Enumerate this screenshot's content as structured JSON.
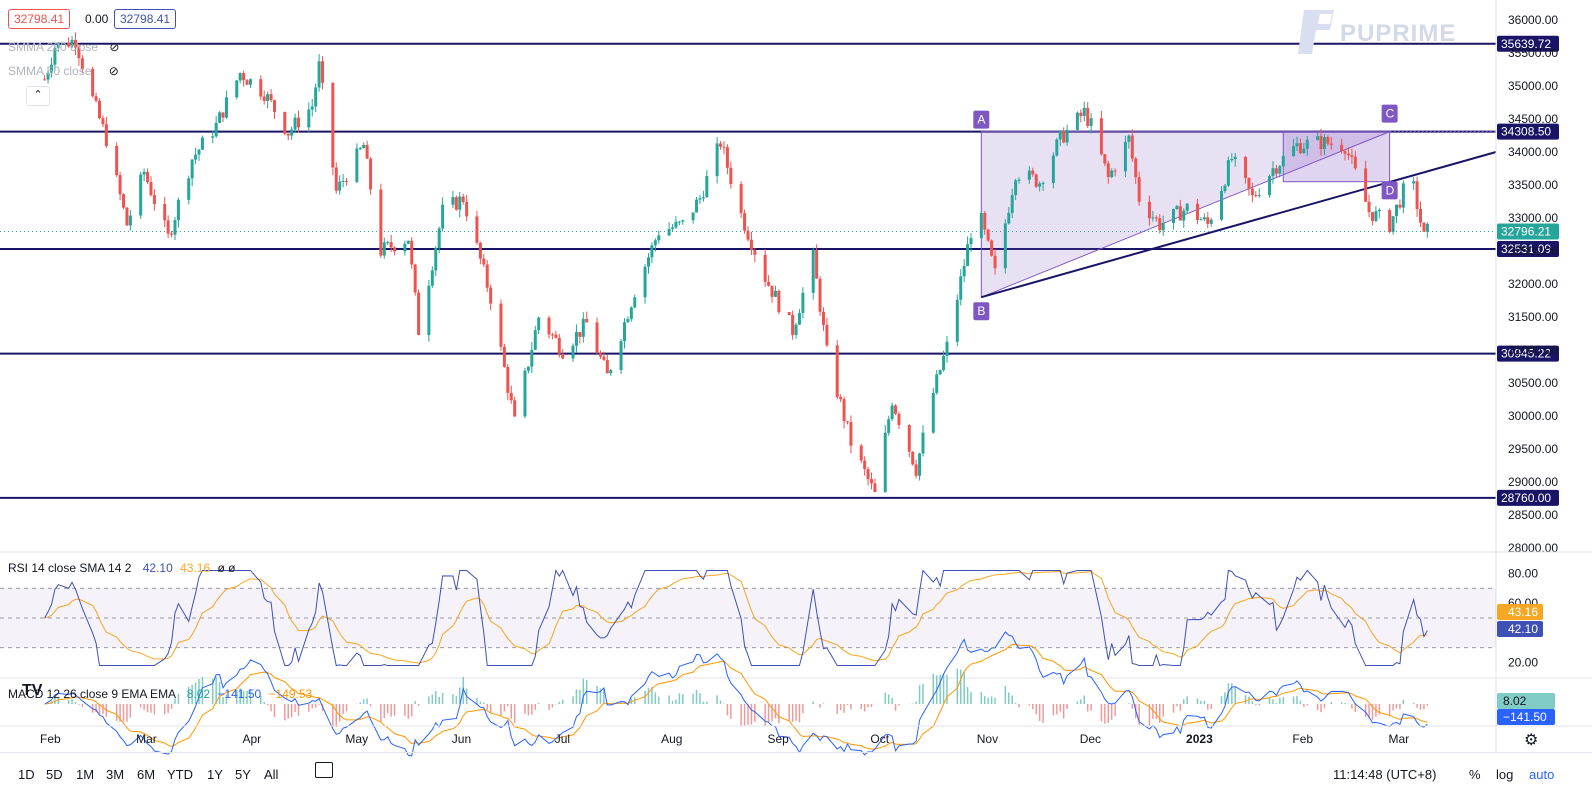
{
  "header": {
    "bid": "32798.41",
    "spread": "0.00",
    "ask": "32798.41",
    "ma_200_label": "SMMA 200 close",
    "ma_50_label": "SMMA 50 close",
    "brand": "PUPRIME"
  },
  "rsi": {
    "label": "RSI 14 close SMA 14 2",
    "value": "42.10",
    "sma": "43.16",
    "extra": "ø ø",
    "axis_ticks": [
      "80.00",
      "60.00",
      "20.00"
    ],
    "tags": [
      "43.16",
      "42.10"
    ]
  },
  "macd": {
    "label": "MACD 12 26 close 9 EMA EMA",
    "hist": "8.02",
    "macd": "−141.50",
    "signal": "−149.53",
    "tags": [
      "8.02",
      "−141.50"
    ]
  },
  "toolbar": {
    "ranges": [
      "1D",
      "5D",
      "1M",
      "3M",
      "6M",
      "YTD",
      "1Y",
      "5Y",
      "All"
    ],
    "clock": "11:14:48 (UTC+8)",
    "percent": "%",
    "log": "log",
    "auto": "auto"
  },
  "colors": {
    "up": "#26a69a",
    "down": "#ef5350",
    "level": "#1a1466",
    "pattern": "#7e57c2",
    "rsi_line": "#3f51b5",
    "rsi_sma": "#f5a623",
    "macd_line": "#2962ff",
    "signal_line": "#ff9800"
  },
  "chart_data": {
    "type": "candlestick",
    "title": "",
    "x_labels": [
      "Feb",
      "Mar",
      "Apr",
      "May",
      "Jun",
      "Jul",
      "Aug",
      "Sep",
      "Oct",
      "Nov",
      "Dec",
      "2023",
      "Feb",
      "Mar"
    ],
    "y_ticks": [
      36000,
      35500,
      35000,
      34500,
      34000,
      33500,
      33000,
      32500,
      32000,
      31500,
      31000,
      30500,
      30000,
      29500,
      29000,
      28500,
      28000
    ],
    "ylim": [
      27900,
      36200
    ],
    "last_price": "32796.21",
    "horizontal_levels": [
      35639.72,
      34308.5,
      32531.09,
      30945.22,
      28760.0
    ],
    "level_labels": [
      "35639.72",
      "34308.50",
      "32531.09",
      "30945.22",
      "28760.00"
    ],
    "pattern_points": [
      {
        "label": "A",
        "date": "2022-10-31",
        "price": 34308.5
      },
      {
        "label": "B",
        "date": "2022-10-31",
        "price": 31800
      },
      {
        "label": "C",
        "date": "2023-02-27",
        "price": 34308.5
      },
      {
        "label": "D",
        "date": "2023-02-27",
        "price": 33600
      }
    ],
    "price_path": [
      [
        "2022-01-31",
        35100
      ],
      [
        "2022-02-03",
        35600
      ],
      [
        "2022-02-09",
        35700
      ],
      [
        "2022-02-14",
        34800
      ],
      [
        "2022-02-18",
        34200
      ],
      [
        "2022-02-24",
        32900
      ],
      [
        "2022-03-01",
        33700
      ],
      [
        "2022-03-08",
        32700
      ],
      [
        "2022-03-15",
        33900
      ],
      [
        "2022-03-22",
        34400
      ],
      [
        "2022-03-29",
        35200
      ],
      [
        "2022-04-05",
        34900
      ],
      [
        "2022-04-12",
        34300
      ],
      [
        "2022-04-19",
        34700
      ],
      [
        "2022-04-21",
        35300
      ],
      [
        "2022-04-26",
        33400
      ],
      [
        "2022-05-04",
        34100
      ],
      [
        "2022-05-09",
        32500
      ],
      [
        "2022-05-17",
        32700
      ],
      [
        "2022-05-20",
        31300
      ],
      [
        "2022-05-27",
        33100
      ],
      [
        "2022-06-02",
        33300
      ],
      [
        "2022-06-10",
        31800
      ],
      [
        "2022-06-17",
        29900
      ],
      [
        "2022-06-24",
        31500
      ],
      [
        "2022-07-01",
        31000
      ],
      [
        "2022-07-08",
        31400
      ],
      [
        "2022-07-14",
        30600
      ],
      [
        "2022-07-22",
        31900
      ],
      [
        "2022-07-29",
        32800
      ],
      [
        "2022-08-05",
        32900
      ],
      [
        "2022-08-10",
        33300
      ],
      [
        "2022-08-16",
        34150
      ],
      [
        "2022-08-22",
        33050
      ],
      [
        "2022-08-29",
        32100
      ],
      [
        "2022-09-06",
        31300
      ],
      [
        "2022-09-12",
        32400
      ],
      [
        "2022-09-16",
        30950
      ],
      [
        "2022-09-23",
        29600
      ],
      [
        "2022-09-30",
        28800
      ],
      [
        "2022-10-05",
        30250
      ],
      [
        "2022-10-12",
        29200
      ],
      [
        "2022-10-17",
        30350
      ],
      [
        "2022-10-21",
        31050
      ],
      [
        "2022-10-28",
        32800
      ],
      [
        "2022-10-31",
        32950
      ],
      [
        "2022-11-04",
        32150
      ],
      [
        "2022-11-10",
        33700
      ],
      [
        "2022-11-17",
        33550
      ],
      [
        "2022-11-23",
        34200
      ],
      [
        "2022-11-30",
        34600
      ],
      [
        "2022-12-02",
        34400
      ],
      [
        "2022-12-07",
        33600
      ],
      [
        "2022-12-13",
        34200
      ],
      [
        "2022-12-16",
        33300
      ],
      [
        "2022-12-22",
        32900
      ],
      [
        "2022-12-30",
        33150
      ],
      [
        "2023-01-05",
        32900
      ],
      [
        "2023-01-12",
        33900
      ],
      [
        "2023-01-18",
        33300
      ],
      [
        "2023-01-24",
        33750
      ],
      [
        "2023-01-31",
        34100
      ],
      [
        "2023-02-07",
        34150
      ],
      [
        "2023-02-14",
        34100
      ],
      [
        "2023-02-21",
        33100
      ],
      [
        "2023-02-27",
        32900
      ],
      [
        "2023-03-03",
        33400
      ],
      [
        "2023-03-06",
        33450
      ],
      [
        "2023-03-09",
        32700
      ],
      [
        "2023-03-10",
        32796
      ]
    ]
  }
}
